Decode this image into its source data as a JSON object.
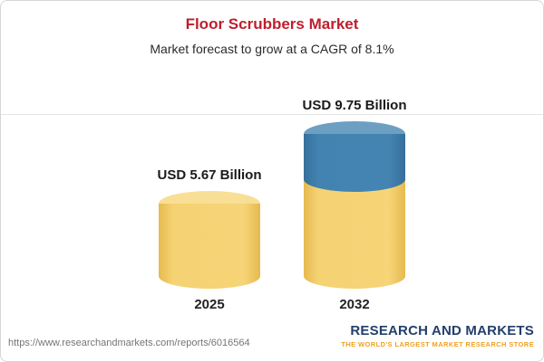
{
  "chart_data": {
    "type": "bar",
    "title": "Floor Scrubbers Market",
    "subtitle": "Market forecast to grow at a CAGR of 8.1%",
    "categories": [
      "2025",
      "2032"
    ],
    "values": [
      5.67,
      9.75
    ],
    "value_labels": [
      "USD 5.67 Billion",
      "USD 9.75 Billion"
    ],
    "unit": "USD Billion",
    "cagr": "8.1%",
    "legend_position": "none",
    "grid": "single top reference line at tallest bar",
    "colors": {
      "base_segment": "#f3ce6b",
      "growth_segment": "#4080ae",
      "title": "#be1e2d",
      "logo_navy": "#233f6b",
      "logo_gold": "#efa120"
    }
  },
  "footer": {
    "url": "https://www.researchandmarkets.com/reports/6016564",
    "logo_line1": "RESEARCH AND MARKETS",
    "logo_line2": "THE WORLD'S LARGEST MARKET RESEARCH STORE"
  }
}
